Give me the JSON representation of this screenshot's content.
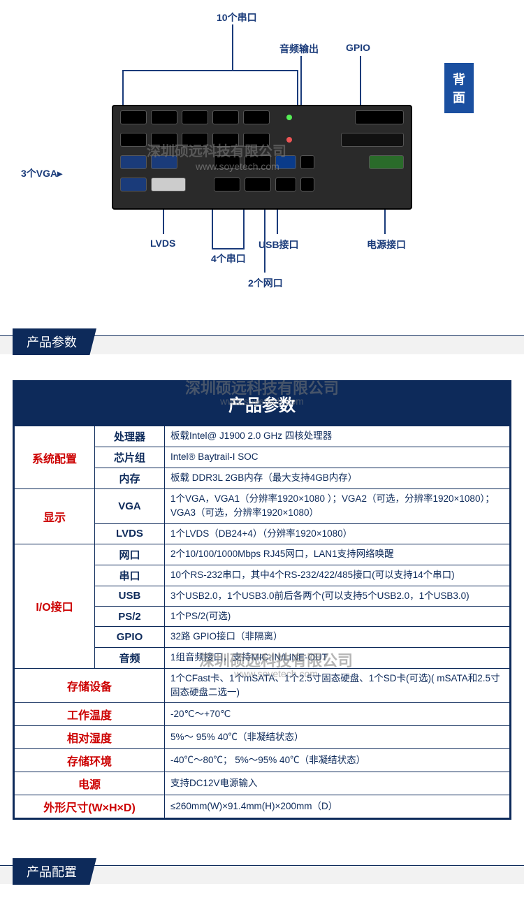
{
  "diagram": {
    "top_serial": "10个串口",
    "audio_out": "音频输出",
    "gpio_label": "GPIO",
    "badge_chars": [
      "背",
      "面"
    ],
    "left_vga": "3个VGA",
    "lvds": "LVDS",
    "serial4": "4个串口",
    "usb": "USB接口",
    "lan2": "2个网口",
    "power": "电源接口",
    "watermark_cn": "深圳硕远科技有限公司",
    "watermark_en": "www.soyetech.com"
  },
  "section1_title": "产品参数",
  "section2_title": "产品配置",
  "spec": {
    "title": "产品参数",
    "watermark_cn": "深圳硕远科技有限公司",
    "watermark_en": "www.soyetech.com",
    "groups": [
      {
        "cat": "系统配置",
        "rows": [
          {
            "sub": "处理器",
            "val": "板载Intel@ J1900 2.0 GHz 四核处理器"
          },
          {
            "sub": "芯片组",
            "val": "Intel® Baytrail-I SOC"
          },
          {
            "sub": "内存",
            "val": "板载 DDR3L 2GB内存（最大支持4GB内存）"
          }
        ]
      },
      {
        "cat": "显示",
        "rows": [
          {
            "sub": "VGA",
            "val": "1个VGA，VGA1（分辨率1920×1080 ）；VGA2（可选，分辨率1920×1080）；VGA3（可选，分辨率1920×1080）"
          },
          {
            "sub": "LVDS",
            "val": "1个LVDS（DB24+4）（分辨率1920×1080）"
          }
        ]
      },
      {
        "cat": "I/O接口",
        "rows": [
          {
            "sub": "网口",
            "val": "2个10/100/1000Mbps RJ45网口，LAN1支持网络唤醒"
          },
          {
            "sub": "串口",
            "val": "10个RS-232串口，其中4个RS-232/422/485接口(可以支持14个串口)"
          },
          {
            "sub": "USB",
            "val": "3个USB2.0，1个USB3.0前后各两个(可以支持5个USB2.0，1个USB3.0)"
          },
          {
            "sub": "PS/2",
            "val": "1个PS/2(可选)"
          },
          {
            "sub": "GPIO",
            "val": "32路 GPIO接口（非隔离）"
          },
          {
            "sub": "音频",
            "val": "1组音频接口，支持MIC-IN/LINE-OUT"
          }
        ]
      }
    ],
    "tail": [
      {
        "cat": "存储设备",
        "val": "1个CFast卡、1个mSATA、1个2.5寸固态硬盘、1个SD卡(可选)( mSATA和2.5寸固态硬盘二选一)"
      },
      {
        "cat": "工作温度",
        "val": "-20℃～+70℃"
      },
      {
        "cat": "相对湿度",
        "val": "5%～ 95% 40℃（非凝结状态）"
      },
      {
        "cat": "存储环境",
        "val": "-40℃～80℃； 5%～95% 40℃（非凝结状态）"
      },
      {
        "cat": "电源",
        "val": "支持DC12V电源输入"
      },
      {
        "cat": "外形尺寸(W×H×D)",
        "val": "≤260mm(W)×91.4mm(H)×200mm（D）"
      }
    ]
  },
  "colors": {
    "brand": "#0d2a5a",
    "accent": "#1a3b7a",
    "red": "#c00",
    "grey": "#f2f2f2"
  }
}
